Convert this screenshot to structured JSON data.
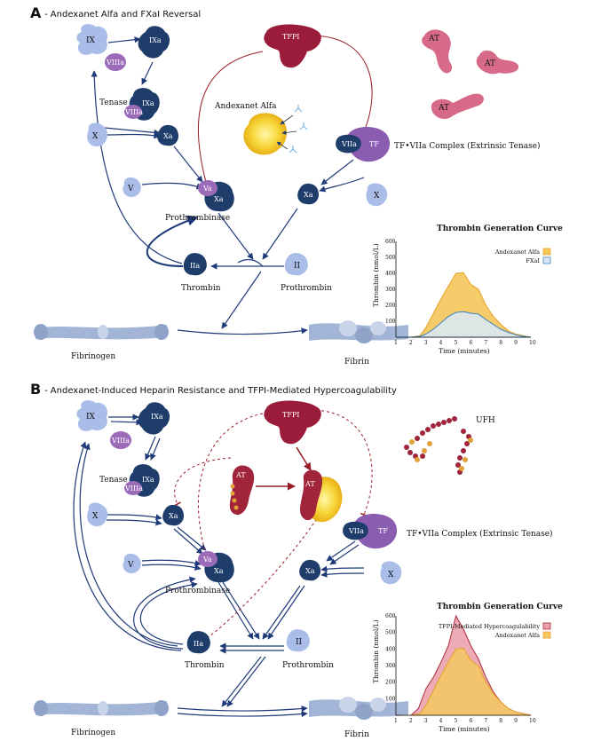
{
  "panelA": {
    "letter": "A",
    "title": "- Andexanet Alfa and FXaI Reversal",
    "labels": {
      "IX": "IX",
      "IXa": "IXa",
      "VIIIa": "VIIIa",
      "tenase": "Tenase",
      "X_left": "X",
      "Xa": "Xa",
      "V": "V",
      "Va": "Va",
      "prothrombinase": "Prothrombinase",
      "IIa": "IIa",
      "thrombin": "Thrombin",
      "II": "II",
      "prothrombin": "Prothrombin",
      "fibrinogen": "Fibrinogen",
      "fibrin": "Fibrin",
      "TFPI": "TFPI",
      "andexanet": "Andexanet Alfa",
      "VIIa": "VIIa",
      "TF": "TF",
      "extrinsic": "TF•VIIa Complex (Extrinsic Tenase)",
      "Xa_right": "Xa",
      "X_right": "X",
      "AT1": "AT",
      "AT2": "AT",
      "AT3": "AT"
    }
  },
  "panelB": {
    "letter": "B",
    "title": "- Andexanet-Induced Heparin Resistance and TFPI-Mediated Hypercoagulability",
    "labels": {
      "IX": "IX",
      "IXa": "IXa",
      "VIIIa": "VIIIa",
      "tenase": "Tenase",
      "X_left": "X",
      "Xa": "Xa",
      "V": "V",
      "Va": "Va",
      "prothrombinase": "Prothrombinase",
      "IIa": "IIa",
      "thrombin": "Thrombin",
      "II": "II",
      "prothrombin": "Prothrombin",
      "fibrinogen": "Fibrinogen",
      "fibrin": "Fibrin",
      "TFPI": "TFPI",
      "AT": "AT",
      "AT_complex": "AT",
      "UFH": "UFH",
      "VIIa": "VIIa",
      "TF": "TF",
      "extrinsic": "TF•VIIa Complex (Extrinsic Tenase)",
      "Xa_right": "Xa",
      "X_right": "X"
    }
  },
  "chart_data": [
    {
      "type": "area",
      "title": "Thrombin Generation Curve",
      "xlabel": "Time (minutes)",
      "ylabel": "Thrombin (nmol/L)",
      "xlim": [
        1,
        10
      ],
      "ylim": [
        0,
        600
      ],
      "x_ticks": [
        "1",
        "2",
        "3",
        "4",
        "5",
        "6",
        "7",
        "8",
        "9",
        "10"
      ],
      "y_ticks": [
        "100",
        "200",
        "300",
        "400",
        "500",
        "600"
      ],
      "legend_position": "top-right",
      "series": [
        {
          "name": "Andexanet Alfa",
          "color": "#f5c55a",
          "stroke": "#e7a22a",
          "x": [
            1,
            2,
            2.6,
            3,
            3.5,
            4,
            4.5,
            5,
            5.5,
            6,
            6.5,
            7,
            7.5,
            8,
            8.5,
            9,
            9.5,
            10
          ],
          "y": [
            0,
            0,
            10,
            60,
            150,
            240,
            320,
            400,
            405,
            330,
            300,
            200,
            130,
            80,
            40,
            20,
            10,
            0
          ]
        },
        {
          "name": "FXaI",
          "color": "#dbe8f3",
          "stroke": "#3a86c0",
          "x": [
            1,
            2,
            2.6,
            3,
            3.5,
            4,
            4.5,
            5,
            5.5,
            6,
            6.5,
            7,
            7.5,
            8,
            8.5,
            9,
            9.5,
            10
          ],
          "y": [
            0,
            0,
            5,
            20,
            50,
            90,
            130,
            155,
            160,
            150,
            145,
            110,
            80,
            50,
            30,
            15,
            5,
            0
          ]
        }
      ]
    },
    {
      "type": "area",
      "title": "Thrombin Generation Curve",
      "xlabel": "Time (minutes)",
      "ylabel": "Thrombin (nmol/L)",
      "xlim": [
        1,
        10
      ],
      "ylim": [
        0,
        600
      ],
      "x_ticks": [
        "1",
        "2",
        "3",
        "4",
        "5",
        "6",
        "7",
        "8",
        "9",
        "10"
      ],
      "y_ticks": [
        "100",
        "200",
        "300",
        "400",
        "500",
        "600"
      ],
      "legend_position": "top-right",
      "series": [
        {
          "name": "TFPI-Mediated Hypercoagulability",
          "color": "#eaa2ad",
          "stroke": "#b02a3a",
          "x": [
            1,
            2,
            2.5,
            3,
            3.5,
            4,
            4.5,
            5,
            5.5,
            6,
            6.5,
            7,
            7.5,
            8,
            8.5,
            9,
            9.5,
            10
          ],
          "y": [
            0,
            0,
            40,
            160,
            230,
            320,
            420,
            600,
            520,
            420,
            340,
            230,
            140,
            80,
            40,
            20,
            10,
            0
          ]
        },
        {
          "name": "Andexanet Alfa",
          "color": "#f2c765",
          "stroke": "#e7a22a",
          "x": [
            1,
            2,
            2.6,
            3,
            3.5,
            4,
            4.5,
            5,
            5.5,
            6,
            6.5,
            7,
            7.5,
            8,
            8.5,
            9,
            9.5,
            10
          ],
          "y": [
            0,
            0,
            10,
            60,
            150,
            240,
            320,
            400,
            405,
            330,
            300,
            200,
            130,
            80,
            40,
            20,
            10,
            0
          ]
        }
      ]
    }
  ]
}
